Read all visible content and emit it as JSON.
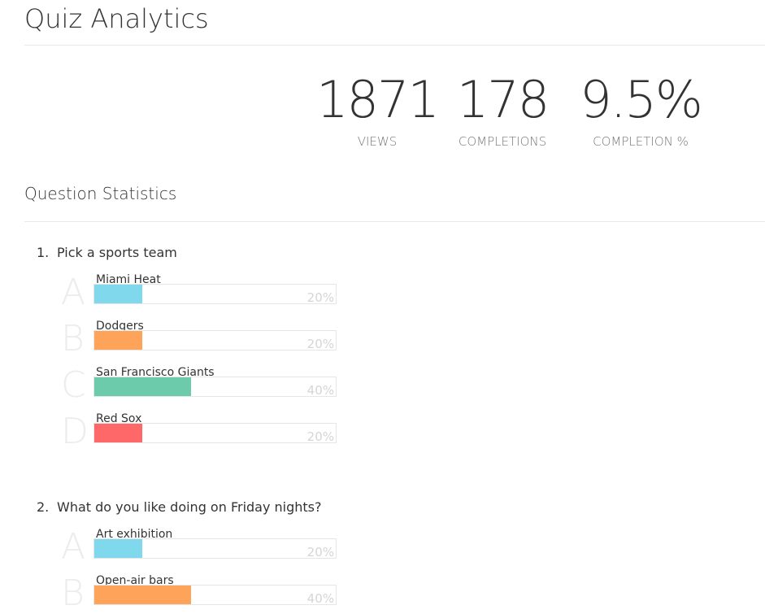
{
  "header": {
    "title": "Quiz Analytics"
  },
  "stats": [
    {
      "value": "1871",
      "label": "VIEWS"
    },
    {
      "value": "178",
      "label": "COMPLETIONS"
    },
    {
      "value": "9.5%",
      "label": "COMPLETION %"
    }
  ],
  "section_title": "Question Statistics",
  "questions": [
    {
      "number": "1.",
      "text": "Pick a sports team",
      "answers": [
        {
          "letter": "A",
          "text": "Miami Heat",
          "percent": 20,
          "percent_label": "20%",
          "color": "#80d8ec"
        },
        {
          "letter": "B",
          "text": "Dodgers",
          "percent": 20,
          "percent_label": "20%",
          "color": "#fda35a"
        },
        {
          "letter": "C",
          "text": "San Francisco Giants",
          "percent": 40,
          "percent_label": "40%",
          "color": "#6bcbab"
        },
        {
          "letter": "D",
          "text": "Red Sox",
          "percent": 20,
          "percent_label": "20%",
          "color": "#fe6868"
        }
      ]
    },
    {
      "number": "2.",
      "text": "What do you like doing on Friday nights?",
      "answers": [
        {
          "letter": "A",
          "text": "Art exhibition",
          "percent": 20,
          "percent_label": "20%",
          "color": "#80d8ec"
        },
        {
          "letter": "B",
          "text": "Open-air bars",
          "percent": 40,
          "percent_label": "40%",
          "color": "#fda35a"
        }
      ]
    }
  ]
}
